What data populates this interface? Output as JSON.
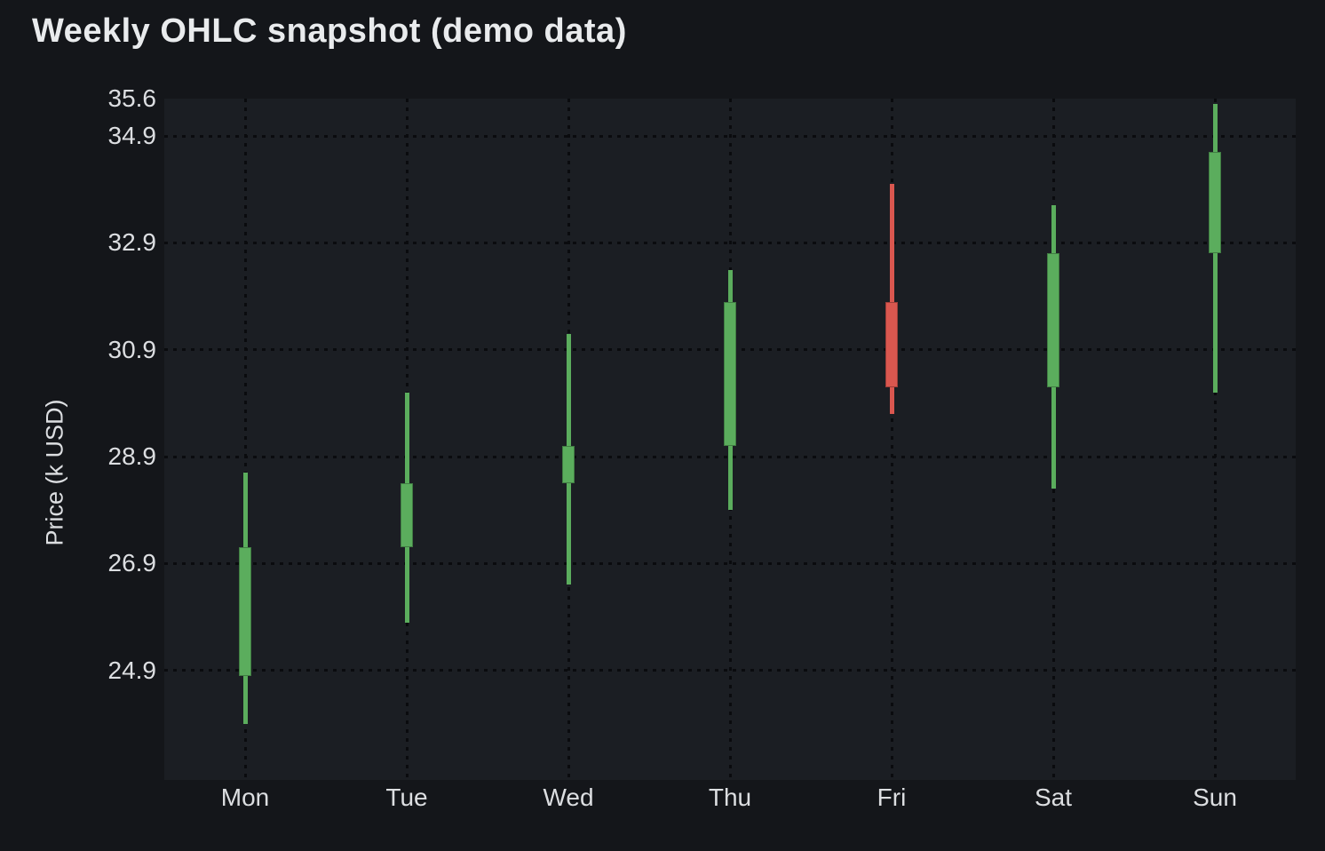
{
  "chart_data": {
    "type": "candlestick",
    "title": "Weekly OHLC snapshot (demo data)",
    "xlabel": "",
    "ylabel": "Price (k USD)",
    "categories": [
      "Mon",
      "Tue",
      "Wed",
      "Thu",
      "Fri",
      "Sat",
      "Sun"
    ],
    "ohlc": [
      {
        "day": "Mon",
        "open": 24.8,
        "high": 28.6,
        "low": 23.9,
        "close": 27.2,
        "direction": "up"
      },
      {
        "day": "Tue",
        "open": 27.2,
        "high": 30.1,
        "low": 25.8,
        "close": 28.4,
        "direction": "up"
      },
      {
        "day": "Wed",
        "open": 28.4,
        "high": 31.2,
        "low": 26.5,
        "close": 29.1,
        "direction": "up"
      },
      {
        "day": "Thu",
        "open": 29.1,
        "high": 32.4,
        "low": 27.9,
        "close": 31.8,
        "direction": "up"
      },
      {
        "day": "Fri",
        "open": 31.8,
        "high": 34.0,
        "low": 29.7,
        "close": 30.2,
        "direction": "down"
      },
      {
        "day": "Sat",
        "open": 30.2,
        "high": 33.6,
        "low": 28.3,
        "close": 32.7,
        "direction": "up"
      },
      {
        "day": "Sun",
        "open": 32.7,
        "high": 35.5,
        "low": 30.1,
        "close": 34.6,
        "direction": "up"
      }
    ],
    "y_ticks": [
      {
        "label": "35.6",
        "value": 35.6,
        "gridline": false
      },
      {
        "label": "34.9",
        "value": 34.9,
        "gridline": true
      },
      {
        "label": "32.9",
        "value": 32.9,
        "gridline": true
      },
      {
        "label": "30.9",
        "value": 30.9,
        "gridline": true
      },
      {
        "label": "28.9",
        "value": 28.9,
        "gridline": true
      },
      {
        "label": "26.9",
        "value": 26.9,
        "gridline": true
      },
      {
        "label": "24.9",
        "value": 24.9,
        "gridline": true
      }
    ],
    "ylim": [
      22.85,
      35.6
    ],
    "grid": {
      "style": "dotted",
      "horizontal": true,
      "vertical": true
    },
    "legend": "none"
  },
  "theme": {
    "up_color": "#5bad5d",
    "down_color": "#da574f",
    "page_background": "#14161a",
    "plot_background": "#1b1e23",
    "grid_color": "#0a0b0e",
    "title_color": "#e9ebed",
    "tick_color": "#dcdee1"
  }
}
